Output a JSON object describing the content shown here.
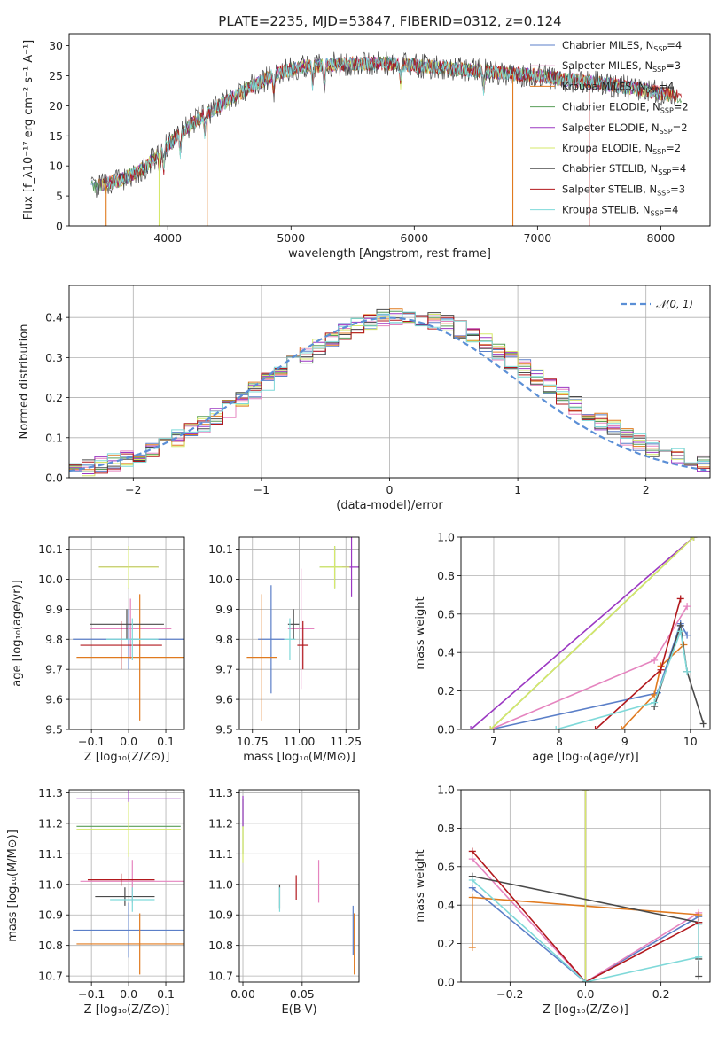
{
  "title": "PLATE=2235, MJD=53847, FIBERID=0312, z=0.124",
  "series_colors": {
    "Chabrier MILES": "#5b7fc8",
    "Salpeter MILES": "#e584bf",
    "Kroupa MILES": "#e07a1f",
    "Chabrier ELODIE": "#5a9e5a",
    "Salpeter ELODIE": "#9b38c2",
    "Kroupa ELODIE": "#d6e86a",
    "Chabrier STELIB": "#4a4a4a",
    "Salpeter STELIB": "#b2181d",
    "Kroupa STELIB": "#7fd9d9"
  },
  "chart_data": [
    {
      "id": "spectrum",
      "type": "line",
      "xlabel": "wavelength [Angstrom, rest frame]",
      "ylabel": "Flux [f_λ10⁻¹⁷ erg cm⁻² s⁻¹ A⁻¹]",
      "xlim": [
        3200,
        8400
      ],
      "ylim": [
        0,
        32
      ],
      "xticks": [
        4000,
        5000,
        6000,
        7000,
        8000
      ],
      "yticks": [
        0,
        5,
        10,
        15,
        20,
        25,
        30
      ],
      "grid": false,
      "legend_position": "top-right",
      "continuum": {
        "x": [
          3400,
          3600,
          3800,
          3950,
          4100,
          4300,
          4500,
          4700,
          4900,
          5100,
          5300,
          5500,
          5800,
          6100,
          6400,
          6700,
          7000,
          7300,
          7600,
          7900,
          8150
        ],
        "y": [
          6.5,
          7.5,
          9.5,
          12.5,
          15.5,
          18.5,
          21.0,
          23.5,
          25.5,
          26.5,
          26.8,
          27.0,
          27.0,
          26.5,
          26.0,
          25.5,
          25.0,
          24.2,
          23.5,
          22.5,
          21.5
        ]
      },
      "series": [
        {
          "name": "Chabrier MILES",
          "legend": "Chabrier MILES, N_SSP=4",
          "label_main": "Chabrier MILES, N",
          "label_sub": "SSP",
          "label_tail": "=4"
        },
        {
          "name": "Salpeter MILES",
          "legend": "Salpeter MILES, N_SSP=3",
          "label_main": "Salpeter MILES, N",
          "label_sub": "SSP",
          "label_tail": "=3"
        },
        {
          "name": "Kroupa MILES",
          "legend": "Kroupa MILES, N_SSP=4",
          "label_main": "Kroupa MILES, N",
          "label_sub": "SSP",
          "label_tail": "=4"
        },
        {
          "name": "Chabrier ELODIE",
          "legend": "Chabrier ELODIE, N_SSP=2",
          "label_main": "Chabrier ELODIE, N",
          "label_sub": "SSP",
          "label_tail": "=2"
        },
        {
          "name": "Salpeter ELODIE",
          "legend": "Salpeter ELODIE, N_SSP=2",
          "label_main": "Salpeter ELODIE, N",
          "label_sub": "SSP",
          "label_tail": "=2"
        },
        {
          "name": "Kroupa ELODIE",
          "legend": "Kroupa ELODIE, N_SSP=2",
          "label_main": "Kroupa ELODIE, N",
          "label_sub": "SSP",
          "label_tail": "=2"
        },
        {
          "name": "Chabrier STELIB",
          "legend": "Chabrier STELIB, N_SSP=4",
          "label_main": "Chabrier STELIB, N",
          "label_sub": "SSP",
          "label_tail": "=4"
        },
        {
          "name": "Salpeter STELIB",
          "legend": "Salpeter STELIB, N_SSP=3",
          "label_main": "Salpeter STELIB, N",
          "label_sub": "SSP",
          "label_tail": "=3"
        },
        {
          "name": "Kroupa STELIB",
          "legend": "Kroupa STELIB, N_SSP=4",
          "label_main": "Kroupa STELIB, N",
          "label_sub": "SSP",
          "label_tail": "=4"
        }
      ],
      "spikes_to_zero": [
        3500,
        3930,
        4320,
        6800,
        7420
      ]
    },
    {
      "id": "residual-histogram",
      "type": "bar",
      "xlabel": "(data-model)/error",
      "ylabel": "Normed distribution",
      "xlim": [
        -2.5,
        2.5
      ],
      "ylim": [
        0,
        0.48
      ],
      "xticks": [
        -2,
        -1,
        0,
        1,
        2
      ],
      "yticks": [
        0.0,
        0.1,
        0.2,
        0.3,
        0.4
      ],
      "grid": true,
      "legend_position": "top-right",
      "reference_curve": {
        "name": "N(0,1)",
        "label": "𝒩(0, 1)",
        "mu": 0,
        "sigma": 1,
        "color": "#5b8fd6"
      },
      "bin_edges_start": -2.5,
      "bin_width": 0.1,
      "n_bins": 50
    },
    {
      "id": "age-vs-Z",
      "type": "scatter",
      "xlabel": "Z [log₁₀(Z/Z⊙)]",
      "ylabel": "age  [log₁₀(age/yr)]",
      "xlim": [
        -0.16,
        0.15
      ],
      "ylim": [
        9.5,
        10.14
      ],
      "xticks": [
        -0.1,
        0.0,
        0.1
      ],
      "yticks": [
        9.5,
        9.6,
        9.7,
        9.8,
        9.9,
        10.0,
        10.1
      ],
      "grid": true,
      "points": [
        {
          "name": "Chabrier MILES",
          "x": 0.0,
          "y": 9.8,
          "xerr": 0.15,
          "yerr": 0.1
        },
        {
          "name": "Salpeter MILES",
          "x": 0.005,
          "y": 9.835,
          "xerr": 0.11,
          "yerr": 0.1
        },
        {
          "name": "Kroupa MILES",
          "x": 0.03,
          "y": 9.74,
          "xerr": 0.17,
          "yerr": 0.21
        },
        {
          "name": "Chabrier ELODIE",
          "x": 0.0,
          "y": 10.04,
          "xerr": 0.08,
          "yerr": 0.07
        },
        {
          "name": "Salpeter ELODIE",
          "x": 0.0,
          "y": 10.04,
          "xerr": 0.08,
          "yerr": 0.07
        },
        {
          "name": "Kroupa ELODIE",
          "x": 0.0,
          "y": 10.04,
          "xerr": 0.08,
          "yerr": 0.07
        },
        {
          "name": "Chabrier STELIB",
          "x": -0.005,
          "y": 9.85,
          "xerr": 0.1,
          "yerr": 0.05
        },
        {
          "name": "Salpeter STELIB",
          "x": -0.02,
          "y": 9.78,
          "xerr": 0.11,
          "yerr": 0.08
        },
        {
          "name": "Kroupa STELIB",
          "x": 0.01,
          "y": 9.8,
          "xerr": 0.07,
          "yerr": 0.07
        }
      ]
    },
    {
      "id": "age-vs-mass",
      "type": "scatter",
      "xlabel": "mass [log₁₀(M/M⊙)]",
      "ylabel": "",
      "xlim": [
        10.68,
        11.32
      ],
      "ylim": [
        9.5,
        10.14
      ],
      "xticks": [
        10.75,
        11.0,
        11.25
      ],
      "yticks": [
        9.5,
        9.6,
        9.7,
        9.8,
        9.9,
        10.0,
        10.1
      ],
      "grid": true,
      "points": [
        {
          "name": "Chabrier MILES",
          "x": 10.85,
          "y": 9.8,
          "xerr": 0.07,
          "yerr": 0.18
        },
        {
          "name": "Salpeter MILES",
          "x": 11.01,
          "y": 9.835,
          "xerr": 0.07,
          "yerr": 0.2
        },
        {
          "name": "Kroupa MILES",
          "x": 10.8,
          "y": 9.74,
          "xerr": 0.08,
          "yerr": 0.21
        },
        {
          "name": "Chabrier ELODIE",
          "x": 11.19,
          "y": 10.04,
          "xerr": 0.08,
          "yerr": 0.07
        },
        {
          "name": "Salpeter ELODIE",
          "x": 11.28,
          "y": 10.04,
          "xerr": 0.05,
          "yerr": 0.1
        },
        {
          "name": "Kroupa ELODIE",
          "x": 11.19,
          "y": 10.04,
          "xerr": 0.08,
          "yerr": 0.07
        },
        {
          "name": "Chabrier STELIB",
          "x": 10.97,
          "y": 9.85,
          "xerr": 0.03,
          "yerr": 0.05
        },
        {
          "name": "Salpeter STELIB",
          "x": 11.02,
          "y": 9.78,
          "xerr": 0.03,
          "yerr": 0.08
        },
        {
          "name": "Kroupa STELIB",
          "x": 10.95,
          "y": 9.8,
          "xerr": 0.03,
          "yerr": 0.07
        }
      ]
    },
    {
      "id": "mass-weight-vs-age",
      "type": "line",
      "xlabel": "age  [log₁₀(age/yr)]",
      "ylabel": "mass weight",
      "xlim": [
        6.5,
        10.3
      ],
      "ylim": [
        0,
        1.0
      ],
      "xticks": [
        7,
        8,
        9,
        10
      ],
      "yticks": [
        0.0,
        0.2,
        0.4,
        0.6,
        0.8,
        1.0
      ],
      "grid": true,
      "series": [
        {
          "name": "Chabrier MILES",
          "x": [
            6.95,
            9.5,
            9.85,
            9.95
          ],
          "y": [
            0.0,
            0.19,
            0.55,
            0.49
          ]
        },
        {
          "name": "Salpeter MILES",
          "x": [
            6.95,
            9.45,
            9.95
          ],
          "y": [
            0.0,
            0.36,
            0.64
          ]
        },
        {
          "name": "Kroupa MILES",
          "x": [
            8.95,
            9.45,
            9.55,
            9.9
          ],
          "y": [
            0.0,
            0.18,
            0.33,
            0.44
          ]
        },
        {
          "name": "Chabrier ELODIE",
          "x": [
            6.95,
            10.05
          ],
          "y": [
            0.0,
            1.0
          ]
        },
        {
          "name": "Salpeter ELODIE",
          "x": [
            6.65,
            10.05
          ],
          "y": [
            0.0,
            1.0
          ]
        },
        {
          "name": "Kroupa ELODIE",
          "x": [
            6.95,
            10.05
          ],
          "y": [
            0.0,
            1.0
          ]
        },
        {
          "name": "Chabrier STELIB",
          "x": [
            9.45,
            9.85,
            9.95,
            10.2
          ],
          "y": [
            0.12,
            0.54,
            0.3,
            0.03
          ]
        },
        {
          "name": "Salpeter STELIB",
          "x": [
            8.55,
            9.55,
            9.85
          ],
          "y": [
            0.0,
            0.31,
            0.68
          ]
        },
        {
          "name": "Kroupa STELIB",
          "x": [
            7.95,
            9.45,
            9.85,
            9.95
          ],
          "y": [
            0.0,
            0.14,
            0.51,
            0.3
          ]
        }
      ]
    },
    {
      "id": "mass-vs-Z",
      "type": "scatter",
      "xlabel": "Z [log₁₀(Z/Z⊙)]",
      "ylabel": "mass [log₁₀(M/M⊙)]",
      "xlim": [
        -0.16,
        0.15
      ],
      "ylim": [
        10.68,
        11.31
      ],
      "xticks": [
        -0.1,
        0.0,
        0.1
      ],
      "yticks": [
        10.7,
        10.8,
        10.9,
        11.0,
        11.1,
        11.2,
        11.3
      ],
      "grid": true,
      "points": [
        {
          "name": "Chabrier MILES",
          "x": 0.0,
          "y": 10.85,
          "xerr": 0.15,
          "yerr": 0.09
        },
        {
          "name": "Salpeter MILES",
          "x": 0.01,
          "y": 11.01,
          "xerr": 0.14,
          "yerr": 0.07
        },
        {
          "name": "Kroupa MILES",
          "x": 0.03,
          "y": 10.805,
          "xerr": 0.17,
          "yerr": 0.1
        },
        {
          "name": "Chabrier ELODIE",
          "x": 0.0,
          "y": 11.19,
          "xerr": 0.14,
          "yerr": 0.09
        },
        {
          "name": "Salpeter ELODIE",
          "x": 0.0,
          "y": 11.28,
          "xerr": 0.14,
          "yerr": 0.04
        },
        {
          "name": "Kroupa ELODIE",
          "x": 0.0,
          "y": 11.18,
          "xerr": 0.14,
          "yerr": 0.09
        },
        {
          "name": "Chabrier STELIB",
          "x": -0.01,
          "y": 10.96,
          "xerr": 0.08,
          "yerr": 0.03
        },
        {
          "name": "Salpeter STELIB",
          "x": -0.02,
          "y": 11.015,
          "xerr": 0.09,
          "yerr": 0.02
        },
        {
          "name": "Kroupa STELIB",
          "x": 0.01,
          "y": 10.95,
          "xerr": 0.06,
          "yerr": 0.04
        }
      ]
    },
    {
      "id": "mass-vs-EBV",
      "type": "scatter",
      "xlabel": "E(B-V)",
      "ylabel": "",
      "xlim": [
        -0.003,
        0.098
      ],
      "ylim": [
        10.68,
        11.31
      ],
      "xticks": [
        0.0,
        0.05
      ],
      "yticks": [
        10.7,
        10.8,
        10.9,
        11.0,
        11.1,
        11.2,
        11.3
      ],
      "grid": true,
      "points": [
        {
          "name": "Chabrier MILES",
          "x": 0.093,
          "y": 10.85,
          "yerr": 0.08
        },
        {
          "name": "Salpeter MILES",
          "x": 0.064,
          "y": 11.01,
          "yerr": 0.07
        },
        {
          "name": "Kroupa MILES",
          "x": 0.094,
          "y": 10.805,
          "yerr": 0.1
        },
        {
          "name": "Chabrier ELODIE",
          "x": 0.0,
          "y": 11.19,
          "yerr": 0.09
        },
        {
          "name": "Salpeter ELODIE",
          "x": 0.0,
          "y": 11.24,
          "yerr": 0.05
        },
        {
          "name": "Kroupa ELODIE",
          "x": 0.0,
          "y": 11.13,
          "yerr": 0.06
        },
        {
          "name": "Chabrier STELIB",
          "x": 0.031,
          "y": 10.96,
          "yerr": 0.04
        },
        {
          "name": "Salpeter STELIB",
          "x": 0.045,
          "y": 10.99,
          "yerr": 0.04
        },
        {
          "name": "Kroupa STELIB",
          "x": 0.031,
          "y": 10.95,
          "yerr": 0.04
        }
      ]
    },
    {
      "id": "mass-weight-vs-Z",
      "type": "line",
      "xlabel": "Z [log₁₀(Z/Z⊙)]",
      "ylabel": "mass weight",
      "xlim": [
        -0.33,
        0.33
      ],
      "ylim": [
        0,
        1.0
      ],
      "xticks": [
        -0.2,
        0.0,
        0.2
      ],
      "yticks": [
        0.0,
        0.2,
        0.4,
        0.6,
        0.8,
        1.0
      ],
      "grid": true,
      "series": [
        {
          "name": "Chabrier MILES",
          "x": [
            -0.3,
            0.0,
            0.3
          ],
          "y": [
            0.49,
            0.0,
            0.34
          ]
        },
        {
          "name": "Salpeter MILES",
          "x": [
            -0.3,
            0.0,
            0.3
          ],
          "y": [
            0.64,
            0.0,
            0.36
          ]
        },
        {
          "name": "Kroupa MILES",
          "x": [
            -0.3,
            -0.3,
            0.3
          ],
          "y": [
            0.18,
            0.44,
            0.35
          ]
        },
        {
          "name": "Chabrier ELODIE",
          "x": [
            0.0,
            0.0
          ],
          "y": [
            0.0,
            1.0
          ]
        },
        {
          "name": "Salpeter ELODIE",
          "x": [
            0.0,
            0.0
          ],
          "y": [
            0.0,
            1.0
          ]
        },
        {
          "name": "Kroupa ELODIE",
          "x": [
            0.0,
            0.0
          ],
          "y": [
            0.0,
            1.0
          ]
        },
        {
          "name": "Chabrier STELIB",
          "x": [
            -0.3,
            0.3,
            0.3,
            0.3
          ],
          "y": [
            0.55,
            0.31,
            0.12,
            0.03
          ]
        },
        {
          "name": "Salpeter STELIB",
          "x": [
            -0.3,
            0.0,
            0.3
          ],
          "y": [
            0.68,
            0.0,
            0.31
          ]
        },
        {
          "name": "Kroupa STELIB",
          "x": [
            -0.3,
            0.0,
            0.3,
            0.3
          ],
          "y": [
            0.53,
            0.0,
            0.13,
            0.3
          ]
        }
      ]
    }
  ]
}
